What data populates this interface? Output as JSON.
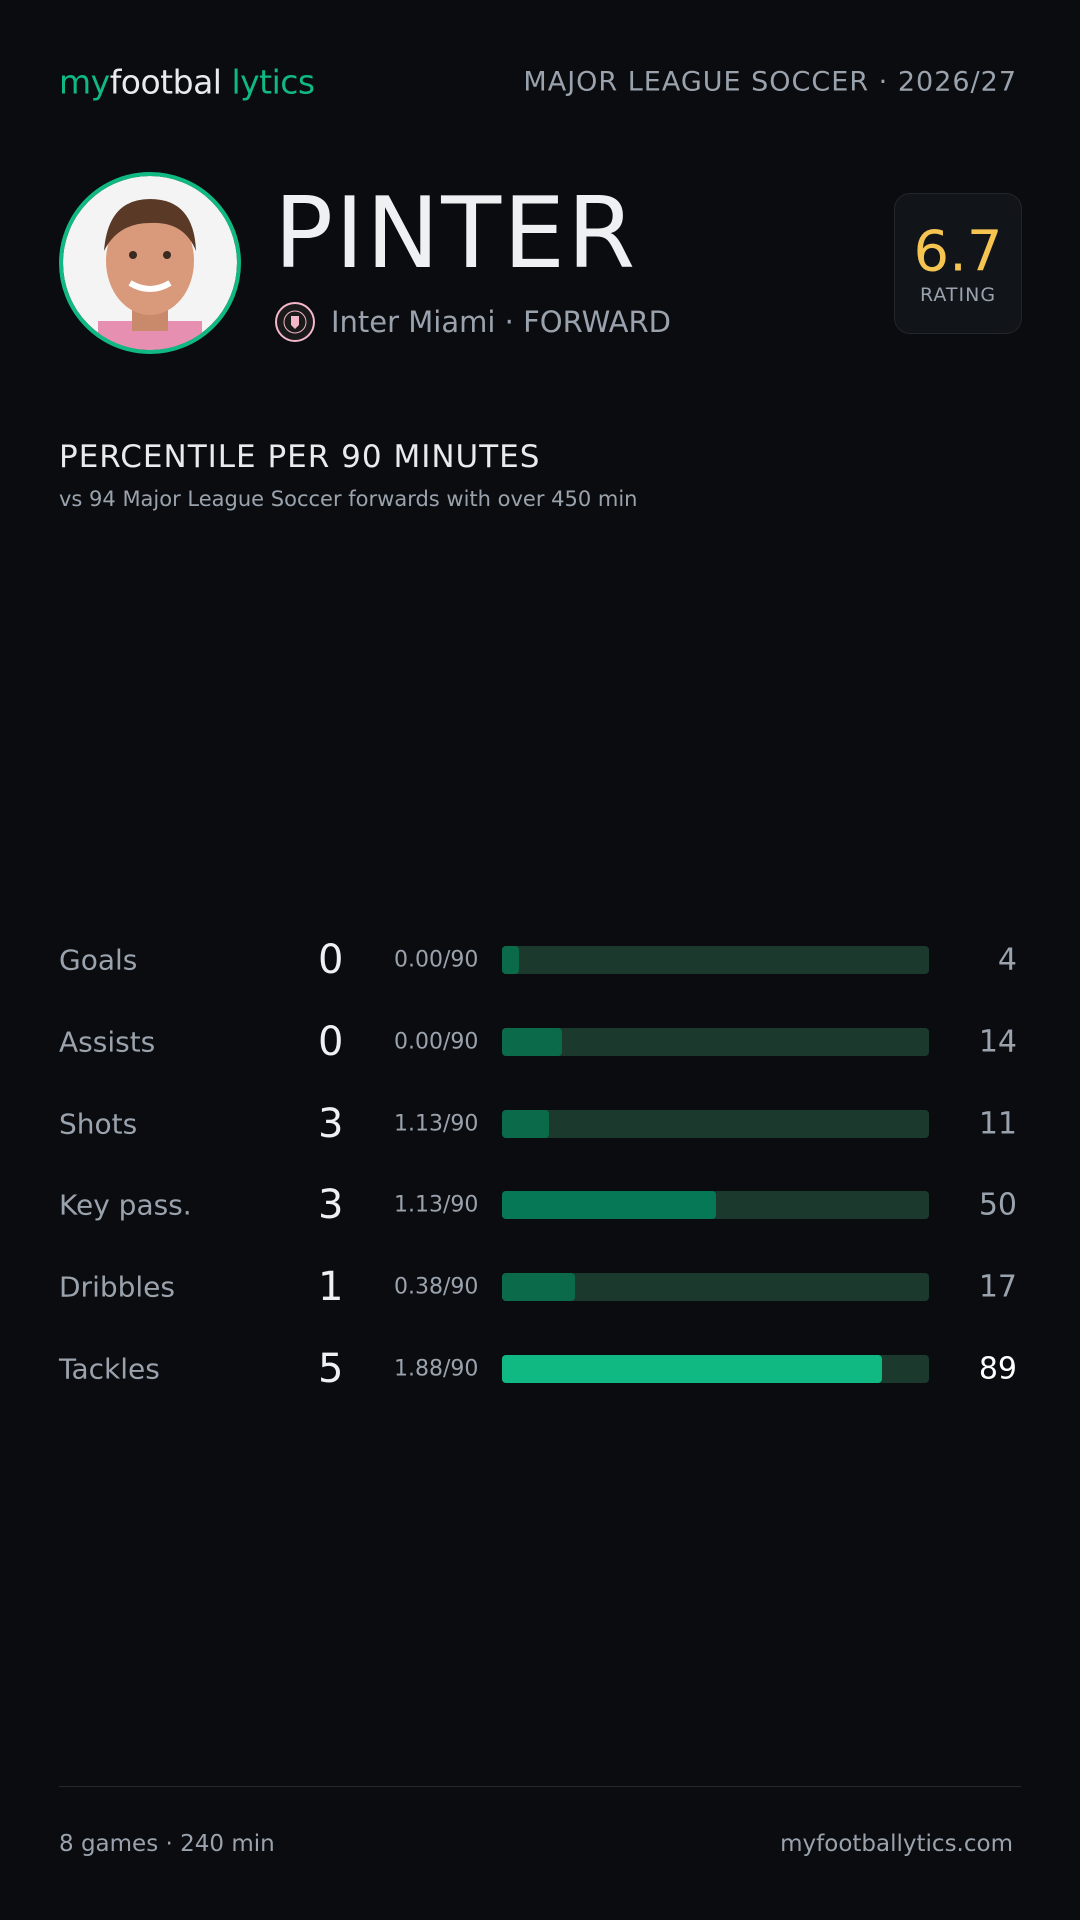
{
  "header": {
    "logo": [
      "my",
      "footbal",
      "lytics"
    ],
    "league": "MAJOR LEAGUE SOCCER · 2026/27"
  },
  "player": {
    "name": "PINTER",
    "subtitle": "Inter Miami · FORWARD",
    "rating": 6.7,
    "rating_label": "RATING"
  },
  "section": {
    "title": "PERCENTILE PER 90 MINUTES",
    "subtitle": "vs 94 Major League Soccer forwards with over 450 min"
  },
  "stats": {
    "xlim": [
      0,
      100
    ],
    "track_color": "#1b3a2d",
    "rows": [
      {
        "label": "Goals",
        "count": 0,
        "per90": "0.00/90",
        "percentile": 4,
        "color": "#0b6a4a",
        "value_color": "#9aa3ad"
      },
      {
        "label": "Assists",
        "count": 0,
        "per90": "0.00/90",
        "percentile": 14,
        "color": "#0b6a4a",
        "value_color": "#9aa3ad"
      },
      {
        "label": "Shots",
        "count": 3,
        "per90": "1.13/90",
        "percentile": 11,
        "color": "#0b6a4a",
        "value_color": "#9aa3ad"
      },
      {
        "label": "Key pass.",
        "count": 3,
        "per90": "1.13/90",
        "percentile": 50,
        "color": "#077856",
        "value_color": "#9aa3ad"
      },
      {
        "label": "Dribbles",
        "count": 1,
        "per90": "0.38/90",
        "percentile": 17,
        "color": "#0b6a4a",
        "value_color": "#9aa3ad"
      },
      {
        "label": "Tackles",
        "count": 5,
        "per90": "1.88/90",
        "percentile": 89,
        "color": "#10b981",
        "value_color": "#ffffff"
      }
    ]
  },
  "footer": {
    "left": "8 games · 240 min",
    "right": "myfootballytics.com"
  }
}
